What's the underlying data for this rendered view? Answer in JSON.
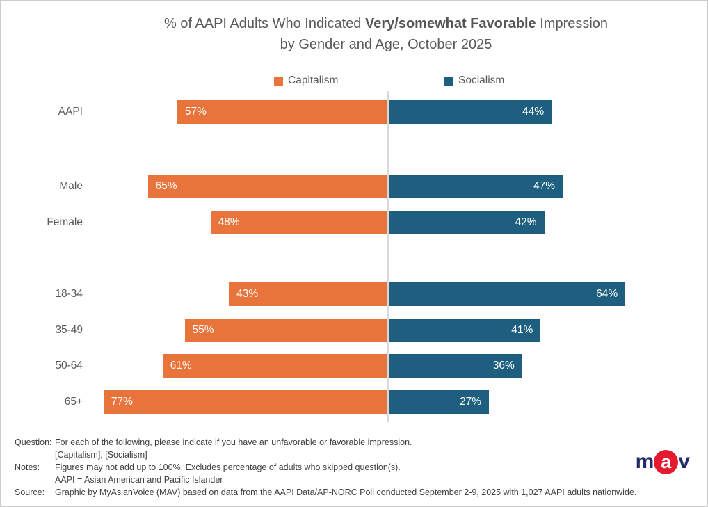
{
  "title": {
    "line1_prefix": "% of AAPI Adults Who Indicated ",
    "line1_bold": "Very/somewhat Favorable",
    "line1_suffix": " Impression",
    "line2": "by Gender and Age, October 2025"
  },
  "legend": [
    {
      "label": "Capitalism",
      "color": "#E8743B"
    },
    {
      "label": "Socialism",
      "color": "#1E5F80"
    }
  ],
  "chart_data": {
    "type": "bar",
    "subtype": "diverging-horizontal",
    "categories": [
      "AAPI",
      "Male",
      "Female",
      "18-34",
      "35-49",
      "50-64",
      "65+"
    ],
    "category_groups": [
      [
        "AAPI"
      ],
      [
        "Male",
        "Female"
      ],
      [
        "18-34",
        "35-49",
        "50-64",
        "65+"
      ]
    ],
    "series": [
      {
        "name": "Capitalism",
        "side": "left",
        "color": "#E8743B",
        "values": [
          57,
          65,
          48,
          43,
          55,
          61,
          77
        ]
      },
      {
        "name": "Socialism",
        "side": "right",
        "color": "#1E5F80",
        "values": [
          44,
          47,
          42,
          64,
          41,
          36,
          27
        ]
      }
    ],
    "value_suffix": "%",
    "xlim": [
      0,
      100
    ],
    "grid": false,
    "legend_position": "top",
    "title": "% of AAPI Adults Who Indicated Very/somewhat Favorable Impression by Gender and Age, October 2025"
  },
  "colors": {
    "capitalism": "#E8743B",
    "socialism": "#1E5F80",
    "text_gray": "#595959",
    "footnote_gray": "#404040",
    "divider": "#D9D9D9"
  },
  "footnotes": [
    {
      "label": "Question:",
      "text": "For each of the following, please indicate if you have an unfavorable or favorable impression."
    },
    {
      "label": "",
      "text": "[Capitalism], [Socialism]"
    },
    {
      "label": "Notes:",
      "text": "Figures may not add up to 100%. Excludes percentage of adults who skipped question(s)."
    },
    {
      "label": "",
      "text": "AAPI = Asian American and Pacific Islander"
    },
    {
      "label": "Source:",
      "text": "Graphic by MyAsianVoice (MAV) based on data from the AAPI Data/AP-NORC Poll conducted September 2-9, 2025 with 1,027 AAPI adults nationwide."
    }
  ],
  "logo": {
    "m": "m",
    "a": "a",
    "v": "v",
    "navy": "#232968",
    "red": "#E6192E"
  }
}
